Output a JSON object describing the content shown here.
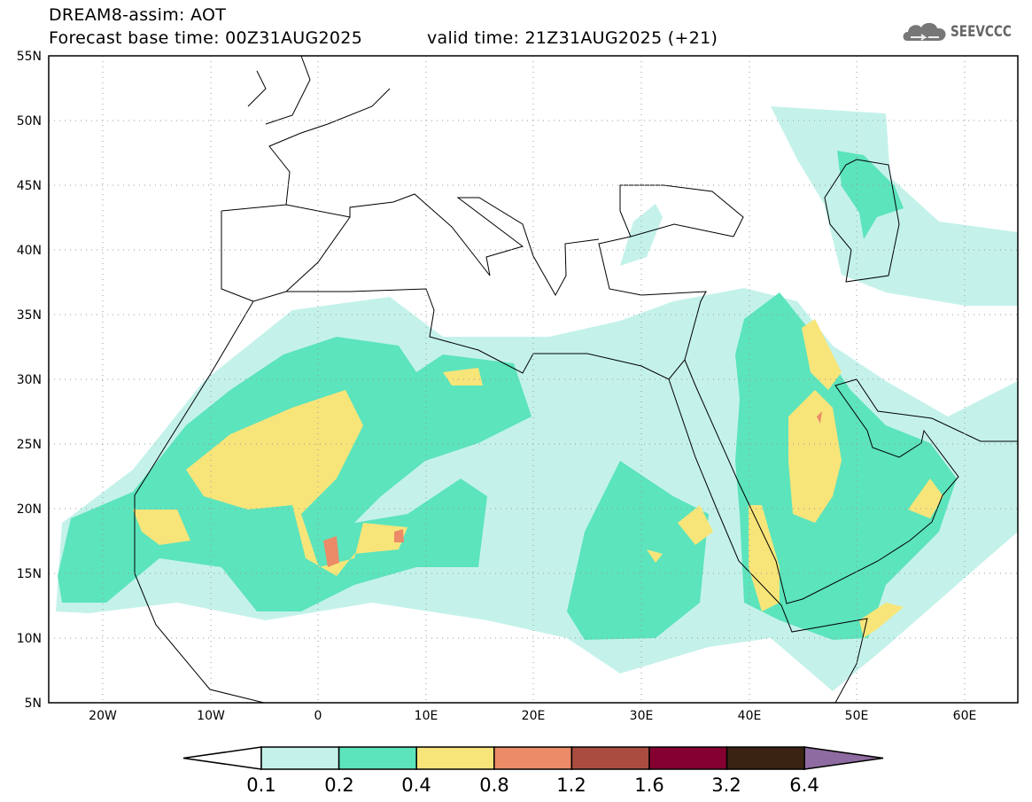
{
  "header": {
    "title": "DREAM8-assim: AOT",
    "base_time": "Forecast base time: 00Z31AUG2025",
    "valid_time": "valid time: 21Z31AUG2025 (+21)"
  },
  "logo": {
    "text": "SEEVCCC"
  },
  "map": {
    "lat_labels": [
      "55N",
      "50N",
      "45N",
      "40N",
      "35N",
      "30N",
      "25N",
      "20N",
      "15N",
      "10N",
      "5N"
    ],
    "lon_labels": [
      "20W",
      "10W",
      "0",
      "10E",
      "20E",
      "30E",
      "40E",
      "50E",
      "60E"
    ]
  },
  "colorbar": {
    "labels": [
      "0.1",
      "0.2",
      "0.4",
      "0.8",
      "1.2",
      "1.6",
      "3.2",
      "6.4"
    ],
    "colors": [
      "#ffffff",
      "#c4f2ea",
      "#5ce4bc",
      "#f7e57a",
      "#eb8b67",
      "#ab4c41",
      "#840030",
      "#3a2312",
      "#8e6ba0"
    ]
  }
}
